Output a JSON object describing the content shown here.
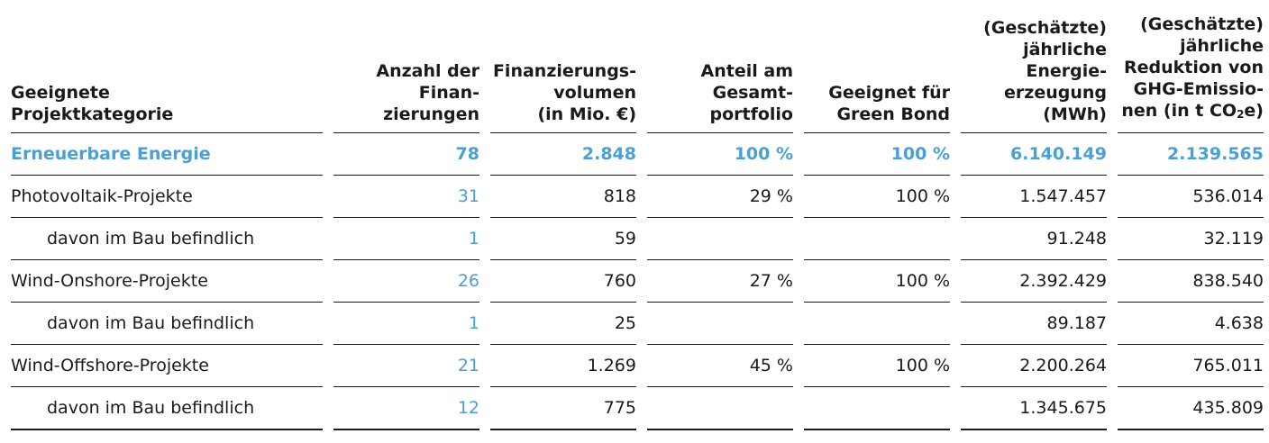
{
  "table": {
    "headers": [
      [
        "Geeignete",
        "Projektkategorie"
      ],
      [
        "Anzahl der",
        "Finan-",
        "zierungen"
      ],
      [
        "Finanzierungs-",
        "volumen",
        "(in Mio. €)"
      ],
      [
        "Anteil am",
        "Gesamt-",
        "portfolio"
      ],
      [
        "Geeignet für",
        "Green Bond"
      ],
      [
        "(Geschätzte)",
        "jährliche",
        "Energie-",
        "erzeugung",
        "(MWh)"
      ],
      [
        "(Geschätzte)",
        "jährliche",
        "Reduktion von",
        "GHG-Emissio-",
        "nen (in t CO",
        "2",
        "e)"
      ]
    ],
    "total": {
      "category": "Erneuerbare Energie",
      "count": "78",
      "volume": "2.848",
      "share": "100 %",
      "green_bond": "100 %",
      "energy": "6.140.149",
      "reduction": "2.139.565"
    },
    "rows": [
      {
        "category": "Photovoltaik-Projekte",
        "count": "31",
        "volume": "818",
        "share": "29 %",
        "green_bond": "100 %",
        "energy": "1.547.457",
        "reduction": "536.014"
      },
      {
        "category": "davon im Bau befindlich",
        "count": "1",
        "volume": "59",
        "share": "",
        "green_bond": "",
        "energy": "91.248",
        "reduction": "32.119"
      },
      {
        "category": "Wind-Onshore-Projekte",
        "count": "26",
        "volume": "760",
        "share": "27 %",
        "green_bond": "100 %",
        "energy": "2.392.429",
        "reduction": "838.540"
      },
      {
        "category": "davon im Bau befindlich",
        "count": "1",
        "volume": "25",
        "share": "",
        "green_bond": "",
        "energy": "89.187",
        "reduction": "4.638"
      },
      {
        "category": "Wind-Offshore-Projekte",
        "count": "21",
        "volume": "1.269",
        "share": "45 %",
        "green_bond": "100 %",
        "energy": "2.200.264",
        "reduction": "765.011"
      },
      {
        "category": "davon im Bau befindlich",
        "count": "12",
        "volume": "775",
        "share": "",
        "green_bond": "",
        "energy": "1.345.675",
        "reduction": "435.809"
      }
    ]
  },
  "colors": {
    "accent": "#4a9fd4",
    "text": "#1a1a1a"
  }
}
